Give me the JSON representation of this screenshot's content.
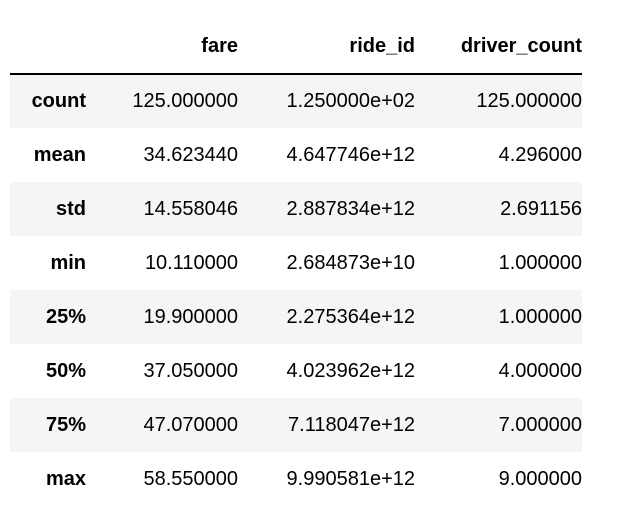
{
  "table": {
    "columns": [
      "fare",
      "ride_id",
      "driver_count"
    ],
    "rows": [
      {
        "label": "count",
        "fare": "125.000000",
        "ride_id": "1.250000e+02",
        "driver_count": "125.000000"
      },
      {
        "label": "mean",
        "fare": "34.623440",
        "ride_id": "4.647746e+12",
        "driver_count": "4.296000"
      },
      {
        "label": "std",
        "fare": "14.558046",
        "ride_id": "2.887834e+12",
        "driver_count": "2.691156"
      },
      {
        "label": "min",
        "fare": "10.110000",
        "ride_id": "2.684873e+10",
        "driver_count": "1.000000"
      },
      {
        "label": "25%",
        "fare": "19.900000",
        "ride_id": "2.275364e+12",
        "driver_count": "1.000000"
      },
      {
        "label": "50%",
        "fare": "37.050000",
        "ride_id": "4.023962e+12",
        "driver_count": "4.000000"
      },
      {
        "label": "75%",
        "fare": "47.070000",
        "ride_id": "7.118047e+12",
        "driver_count": "7.000000"
      },
      {
        "label": "max",
        "fare": "58.550000",
        "ride_id": "9.990581e+12",
        "driver_count": "9.000000"
      }
    ]
  }
}
